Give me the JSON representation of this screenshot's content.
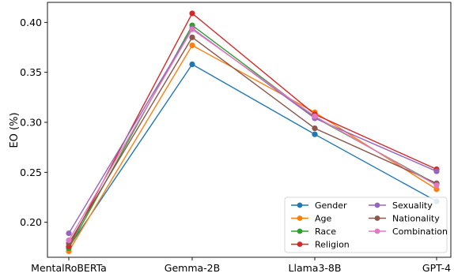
{
  "chart_data": {
    "type": "line",
    "title": "",
    "xlabel": "",
    "ylabel": "EO (%)",
    "categories": [
      "MentalRoBERTa",
      "Gemma-2B",
      "Llama3-8B",
      "GPT-4"
    ],
    "ylim": [
      0.165,
      0.42
    ],
    "yticks": [
      0.2,
      0.25,
      0.3,
      0.35,
      0.4
    ],
    "ytick_labels": [
      "0.20",
      "0.25",
      "0.30",
      "0.35",
      "0.40"
    ],
    "grid": false,
    "legend_position": "lower-right",
    "legend_columns": 2,
    "series": [
      {
        "name": "Gender",
        "color": "#1f77b4",
        "values": [
          0.175,
          0.358,
          0.288,
          0.221
        ]
      },
      {
        "name": "Age",
        "color": "#ff7f0e",
        "values": [
          0.171,
          0.377,
          0.31,
          0.233
        ]
      },
      {
        "name": "Race",
        "color": "#2ca02c",
        "values": [
          0.174,
          0.397,
          0.305,
          0.238
        ]
      },
      {
        "name": "Religion",
        "color": "#d62728",
        "values": [
          0.176,
          0.409,
          0.308,
          0.253
        ]
      },
      {
        "name": "Sexuality",
        "color": "#9467bd",
        "values": [
          0.189,
          0.394,
          0.304,
          0.251
        ]
      },
      {
        "name": "Nationality",
        "color": "#8c564b",
        "values": [
          0.179,
          0.385,
          0.294,
          0.239
        ]
      },
      {
        "name": "Combination",
        "color": "#e377c2",
        "values": [
          0.182,
          0.393,
          0.306,
          0.237
        ]
      }
    ]
  }
}
